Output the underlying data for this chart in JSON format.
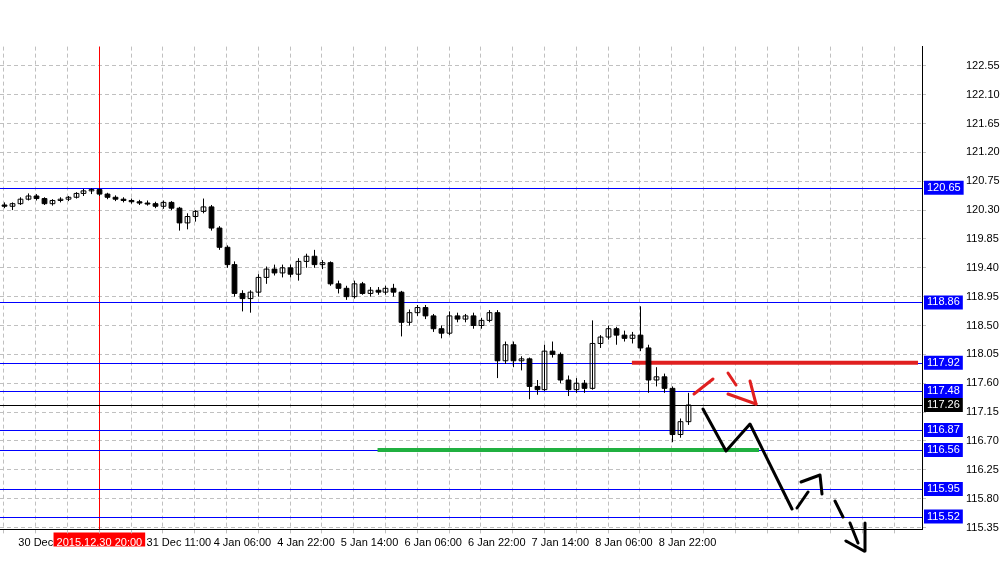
{
  "chart_data": {
    "type": "candlestick",
    "color": "#000000",
    "categories": [
      null,
      null,
      null,
      null,
      "30 Dec",
      null,
      null,
      null,
      null,
      null,
      null,
      null,
      "2015.12.30 20:00",
      null,
      null,
      null,
      null,
      null,
      null,
      null,
      null,
      null,
      "31 Dec 11:00",
      null,
      null,
      null,
      null,
      null,
      null,
      null,
      "4 Jan 06:00",
      null,
      null,
      null,
      null,
      null,
      null,
      null,
      "4 Jan 22:00",
      null,
      null,
      null,
      null,
      null,
      null,
      null,
      "5 Jan 14:00",
      null,
      null,
      null,
      null,
      null,
      null,
      null,
      "6 Jan 06:00",
      null,
      null,
      null,
      null,
      null,
      null,
      null,
      "6 Jan 22:00",
      null,
      null,
      null,
      null,
      null,
      null,
      null,
      "7 Jan 14:00",
      null,
      null,
      null,
      null,
      null,
      null,
      null,
      "8 Jan 06:00",
      null,
      null,
      null,
      null,
      null,
      null,
      null,
      "8 Jan 22:00",
      null,
      null,
      null,
      null,
      null,
      null,
      null,
      null,
      null,
      null,
      null,
      null,
      null,
      null,
      null,
      null,
      null,
      null,
      null,
      null,
      null,
      null,
      null,
      null,
      null,
      null,
      null,
      null,
      null
    ],
    "ohlc": [
      [
        120.38,
        120.42,
        120.33,
        120.36
      ],
      [
        120.36,
        120.42,
        120.3,
        120.4
      ],
      [
        120.4,
        120.5,
        120.38,
        120.47
      ],
      [
        120.47,
        120.56,
        120.45,
        120.52
      ],
      [
        120.52,
        120.55,
        120.45,
        120.48
      ],
      [
        120.48,
        120.5,
        120.38,
        120.4
      ],
      [
        120.4,
        120.47,
        120.37,
        120.45
      ],
      [
        120.45,
        120.5,
        120.42,
        120.47
      ],
      [
        120.47,
        120.52,
        120.44,
        120.5
      ],
      [
        120.5,
        120.58,
        120.48,
        120.56
      ],
      [
        120.56,
        120.63,
        120.52,
        120.6
      ],
      [
        120.6,
        120.64,
        120.55,
        120.62
      ],
      [
        120.62,
        120.64,
        120.52,
        120.55
      ],
      [
        120.55,
        120.57,
        120.47,
        120.5
      ],
      [
        120.5,
        120.53,
        120.44,
        120.47
      ],
      [
        120.47,
        120.5,
        120.42,
        120.45
      ],
      [
        120.45,
        120.48,
        120.4,
        120.43
      ],
      [
        120.43,
        120.46,
        120.38,
        120.41
      ],
      [
        120.41,
        120.45,
        120.37,
        120.4
      ],
      [
        120.4,
        120.43,
        120.33,
        120.36
      ],
      [
        120.36,
        120.45,
        120.32,
        120.42
      ],
      [
        120.42,
        120.44,
        120.3,
        120.33
      ],
      [
        120.33,
        120.35,
        119.98,
        120.1
      ],
      [
        120.1,
        120.25,
        120.0,
        120.2
      ],
      [
        120.2,
        120.3,
        120.12,
        120.28
      ],
      [
        120.28,
        120.48,
        120.25,
        120.35
      ],
      [
        120.35,
        120.38,
        119.98,
        120.02
      ],
      [
        120.02,
        120.05,
        119.68,
        119.72
      ],
      [
        119.72,
        119.75,
        119.4,
        119.45
      ],
      [
        119.45,
        119.5,
        118.95,
        119.0
      ],
      [
        119.0,
        119.05,
        118.72,
        118.92
      ],
      [
        118.92,
        119.05,
        118.7,
        119.02
      ],
      [
        119.02,
        119.3,
        118.95,
        119.25
      ],
      [
        119.25,
        119.42,
        119.15,
        119.38
      ],
      [
        119.38,
        119.45,
        119.28,
        119.32
      ],
      [
        119.32,
        119.45,
        119.25,
        119.4
      ],
      [
        119.4,
        119.45,
        119.25,
        119.3
      ],
      [
        119.3,
        119.55,
        119.2,
        119.5
      ],
      [
        119.5,
        119.62,
        119.4,
        119.58
      ],
      [
        119.58,
        119.68,
        119.4,
        119.45
      ],
      [
        119.45,
        119.52,
        119.38,
        119.48
      ],
      [
        119.48,
        119.5,
        119.12,
        119.15
      ],
      [
        119.15,
        119.2,
        119.0,
        119.08
      ],
      [
        119.08,
        119.12,
        118.9,
        118.95
      ],
      [
        118.95,
        119.2,
        118.92,
        119.15
      ],
      [
        119.15,
        119.18,
        118.98,
        119.0
      ],
      [
        119.0,
        119.1,
        118.95,
        119.05
      ],
      [
        119.05,
        119.1,
        118.98,
        119.02
      ],
      [
        119.02,
        119.12,
        118.98,
        119.08
      ],
      [
        119.08,
        119.15,
        118.95,
        119.02
      ],
      [
        119.02,
        119.04,
        118.33,
        118.55
      ],
      [
        118.55,
        118.75,
        118.5,
        118.7
      ],
      [
        118.7,
        118.82,
        118.65,
        118.78
      ],
      [
        118.78,
        118.82,
        118.6,
        118.65
      ],
      [
        118.65,
        118.68,
        118.4,
        118.45
      ],
      [
        118.45,
        118.5,
        118.3,
        118.38
      ],
      [
        118.38,
        118.72,
        118.35,
        118.65
      ],
      [
        118.65,
        118.7,
        118.55,
        118.6
      ],
      [
        118.6,
        118.68,
        118.55,
        118.65
      ],
      [
        118.65,
        118.7,
        118.45,
        118.5
      ],
      [
        118.5,
        118.62,
        118.45,
        118.58
      ],
      [
        118.58,
        118.74,
        118.55,
        118.7
      ],
      [
        118.7,
        118.74,
        117.68,
        117.95
      ],
      [
        117.95,
        118.25,
        117.9,
        118.2
      ],
      [
        118.2,
        118.25,
        117.85,
        117.95
      ],
      [
        117.95,
        118.02,
        117.8,
        117.98
      ],
      [
        117.98,
        118.0,
        117.35,
        117.55
      ],
      [
        117.55,
        117.65,
        117.42,
        117.5
      ],
      [
        117.5,
        118.2,
        117.48,
        118.1
      ],
      [
        118.1,
        118.25,
        118.0,
        118.05
      ],
      [
        118.05,
        118.08,
        117.6,
        117.65
      ],
      [
        117.65,
        117.72,
        117.4,
        117.5
      ],
      [
        117.5,
        117.68,
        117.45,
        117.6
      ],
      [
        117.6,
        117.65,
        117.45,
        117.52
      ],
      [
        117.52,
        118.58,
        117.5,
        118.22
      ],
      [
        118.22,
        118.35,
        118.15,
        118.32
      ],
      [
        118.32,
        118.5,
        118.28,
        118.45
      ],
      [
        118.45,
        118.48,
        118.2,
        118.35
      ],
      [
        118.35,
        118.42,
        118.25,
        118.3
      ],
      [
        118.3,
        118.4,
        118.22,
        118.35
      ],
      [
        118.35,
        118.8,
        118.1,
        118.15
      ],
      [
        118.15,
        118.2,
        117.45,
        117.65
      ],
      [
        117.65,
        117.85,
        117.55,
        117.7
      ],
      [
        117.7,
        117.75,
        117.45,
        117.52
      ],
      [
        117.52,
        117.55,
        116.68,
        116.8
      ],
      [
        116.8,
        117.05,
        116.75,
        117.0
      ],
      [
        117.0,
        117.45,
        116.95,
        117.26
      ],
      null,
      null,
      null,
      null,
      null,
      null,
      null,
      null,
      null,
      null,
      null,
      null,
      null,
      null,
      null,
      null,
      null,
      null,
      null,
      null,
      null,
      null,
      null,
      null,
      null,
      null,
      null,
      null,
      null
    ],
    "series": [
      {
        "type": "line",
        "color": "#e02020",
        "values": [
          null,
          null,
          null,
          null,
          null,
          null,
          null,
          null,
          null,
          null,
          null,
          null,
          null,
          null,
          null,
          null,
          null,
          null,
          null,
          null,
          null,
          null,
          null,
          null,
          null,
          null,
          null,
          null,
          null,
          null,
          null,
          null,
          null,
          null,
          null,
          null,
          null,
          null,
          null,
          null,
          null,
          null,
          null,
          null,
          null,
          null,
          null,
          null,
          null,
          null,
          null,
          null,
          null,
          null,
          null,
          null,
          null,
          null,
          null,
          null,
          null,
          null,
          null,
          null,
          null,
          null,
          null,
          null,
          null,
          null,
          null,
          null,
          null,
          null,
          null,
          null,
          null,
          null,
          null,
          117.92,
          117.92,
          117.92,
          117.92,
          117.92,
          117.92,
          117.92,
          117.92,
          117.92,
          117.92,
          117.92,
          117.92,
          117.92,
          117.92,
          117.92,
          117.92,
          117.92,
          117.92,
          117.92,
          117.92,
          117.92,
          117.92,
          117.92,
          117.92,
          117.92,
          117.92,
          117.92,
          117.92,
          117.92,
          117.92,
          117.92,
          117.92,
          117.92,
          117.92,
          117.92,
          117.92,
          117.92
        ]
      },
      {
        "type": "line",
        "color": "#20b040",
        "values": [
          null,
          null,
          null,
          null,
          null,
          null,
          null,
          null,
          null,
          null,
          null,
          null,
          null,
          null,
          null,
          null,
          null,
          null,
          null,
          null,
          null,
          null,
          null,
          null,
          null,
          null,
          null,
          null,
          null,
          null,
          null,
          null,
          null,
          null,
          null,
          null,
          null,
          null,
          null,
          null,
          null,
          null,
          null,
          null,
          null,
          null,
          null,
          116.56,
          116.56,
          116.56,
          116.56,
          116.56,
          116.56,
          116.56,
          116.56,
          116.56,
          116.56,
          116.56,
          116.56,
          116.56,
          116.56,
          116.56,
          116.56,
          116.56,
          116.56,
          116.56,
          116.56,
          116.56,
          116.56,
          116.56,
          116.56,
          116.56,
          116.56,
          116.56,
          116.56,
          116.56,
          116.56,
          116.56,
          116.56,
          116.56,
          116.56,
          116.56,
          116.56,
          116.56,
          116.56,
          116.56,
          116.56,
          116.56,
          116.56,
          116.56,
          116.56,
          116.56,
          116.56,
          116.56,
          116.56,
          116.56,
          null,
          null,
          null,
          null,
          null,
          null,
          null,
          null,
          null,
          null,
          null,
          null,
          null,
          null,
          null,
          null,
          null,
          null,
          null,
          null
        ]
      }
    ],
    "ylim": [
      115.32,
      122.85
    ],
    "yticks": [
      122.55,
      {
        "value": 122.1,
        "label": "122.10"
      },
      121.65,
      {
        "value": 121.2,
        "label": "121.20"
      },
      120.75,
      {
        "value": 120.3,
        "label": "120.30"
      },
      119.85,
      {
        "value": 119.4,
        "label": "119.40"
      },
      118.95,
      {
        "value": 118.5,
        "label": "118.50"
      },
      118.05,
      {
        "value": 117.6,
        "label": "117.60"
      },
      117.15,
      {
        "value": 116.7,
        "label": "116.70"
      },
      116.25,
      {
        "value": 115.8,
        "label": "115.80"
      },
      115.35
    ],
    "grid": true,
    "ref_lines": [
      {
        "axis": "x",
        "value": "2015.12.30 20:00",
        "color": "#ff0000"
      },
      {
        "axis": "y",
        "value": 120.65,
        "label": "120.65",
        "color": "#0000ff"
      },
      {
        "axis": "y",
        "value": 118.86,
        "label": "118.86",
        "color": "#0000ff"
      },
      {
        "axis": "y",
        "value": 117.92,
        "label": "117.92",
        "color": "#0000ff"
      },
      {
        "axis": "y",
        "value": 117.48,
        "label": "117.48",
        "color": "#0000ff"
      },
      {
        "axis": "y",
        "value": 117.26,
        "label": "117.26",
        "color": "#000000"
      },
      {
        "axis": "y",
        "value": 116.87,
        "label": "116.87",
        "color": "#0000ff"
      },
      {
        "axis": "y",
        "value": 116.56,
        "label": "116.56",
        "color": "#0000ff"
      },
      {
        "axis": "y",
        "value": 115.95,
        "label": "115.95",
        "color": "#0000ff"
      },
      {
        "axis": "y",
        "value": 115.52,
        "label": "115.52",
        "color": "#0000ff"
      }
    ]
  }
}
